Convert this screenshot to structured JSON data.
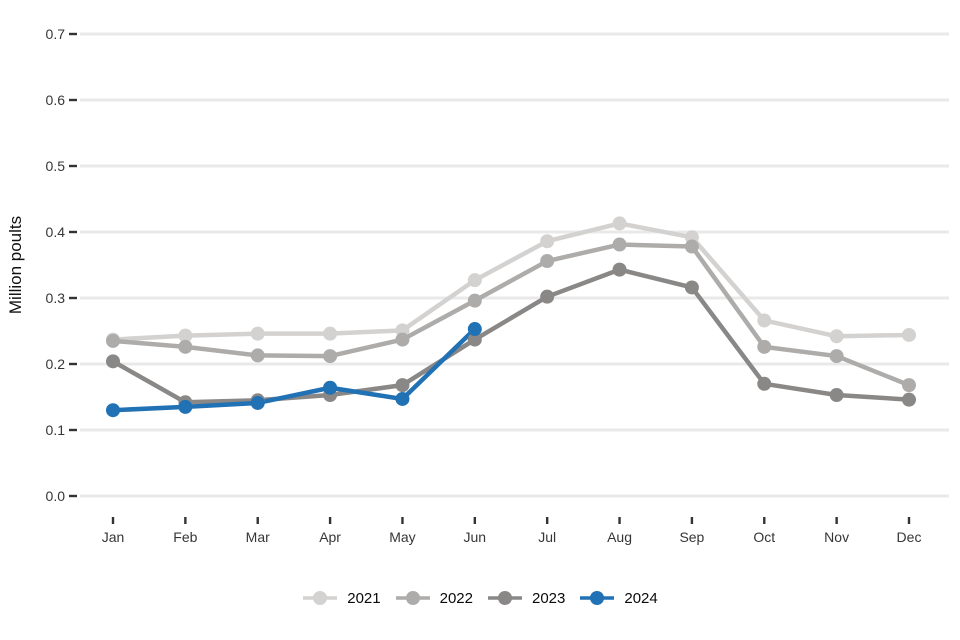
{
  "chart_data": {
    "type": "line",
    "title": "",
    "xlabel": "",
    "ylabel": "Million poults",
    "categories": [
      "Jan",
      "Feb",
      "Mar",
      "Apr",
      "May",
      "Jun",
      "Jul",
      "Aug",
      "Sep",
      "Oct",
      "Nov",
      "Dec"
    ],
    "y_ticks": [
      "0.0",
      "0.1",
      "0.2",
      "0.3",
      "0.4",
      "0.5",
      "0.6",
      "0.7"
    ],
    "ylim": [
      0.0,
      0.7
    ],
    "grid": true,
    "legend_position": "bottom",
    "series": [
      {
        "name": "2021",
        "color": "#d4d2d0",
        "values": [
          0.237,
          0.243,
          0.246,
          0.246,
          0.251,
          0.327,
          0.386,
          0.413,
          0.392,
          0.266,
          0.242,
          0.244
        ]
      },
      {
        "name": "2022",
        "color": "#aeacaa",
        "values": [
          0.235,
          0.226,
          0.213,
          0.212,
          0.237,
          0.296,
          0.356,
          0.381,
          0.378,
          0.226,
          0.212,
          0.168
        ]
      },
      {
        "name": "2023",
        "color": "#8a8887",
        "values": [
          0.204,
          0.142,
          0.145,
          0.153,
          0.168,
          0.237,
          0.302,
          0.343,
          0.316,
          0.17,
          0.153,
          0.146
        ]
      },
      {
        "name": "2024",
        "color": "#2171b5",
        "values": [
          0.13,
          0.135,
          0.141,
          0.164,
          0.147,
          0.253,
          null,
          null,
          null,
          null,
          null,
          null
        ]
      }
    ]
  },
  "colors": {
    "background": "#ffffff",
    "gridline": "#e9e9e9",
    "tick": "#333333",
    "axis_text": "#363636",
    "axis_title": "#111111"
  }
}
